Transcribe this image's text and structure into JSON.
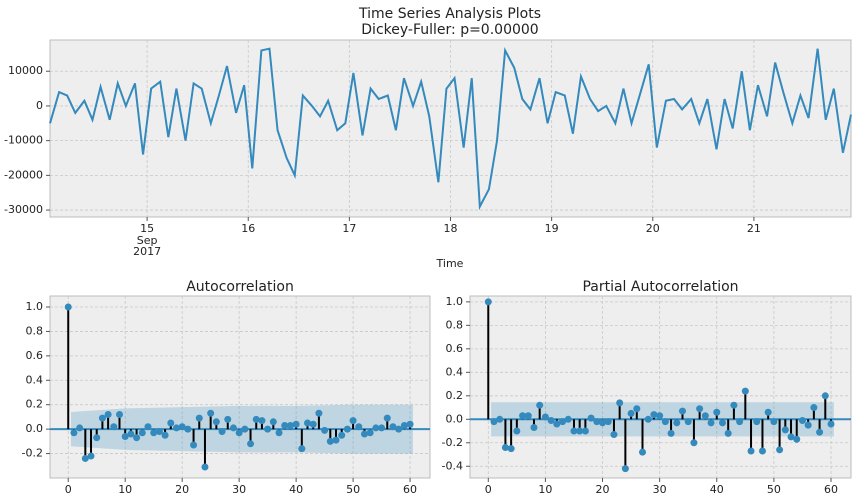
{
  "chart_data": [
    {
      "type": "line",
      "title": "Time Series Analysis Plots",
      "subtitle": "Dickey-Fuller: p=0.00000",
      "xlabel": "Time",
      "date_label": {
        "month": "Sep",
        "year": "2017"
      },
      "color": "#348abd",
      "grid": true,
      "xlim": [
        14.04,
        21.96
      ],
      "xticks": [
        15,
        16,
        17,
        18,
        19,
        20,
        21
      ],
      "ylim": [
        -32000,
        19000
      ],
      "yticks": [
        10000,
        0,
        -10000,
        -20000,
        -30000
      ],
      "x": [
        14.04,
        14.13,
        14.21,
        14.29,
        14.38,
        14.46,
        14.54,
        14.63,
        14.71,
        14.79,
        14.88,
        14.96,
        15.04,
        15.13,
        15.21,
        15.29,
        15.38,
        15.46,
        15.54,
        15.63,
        15.71,
        15.79,
        15.88,
        15.96,
        16.04,
        16.13,
        16.21,
        16.29,
        16.38,
        16.46,
        16.54,
        16.63,
        16.71,
        16.79,
        16.88,
        16.96,
        17.04,
        17.13,
        17.21,
        17.29,
        17.38,
        17.46,
        17.54,
        17.63,
        17.71,
        17.79,
        17.88,
        17.96,
        18.04,
        18.13,
        18.21,
        18.29,
        18.38,
        18.46,
        18.54,
        18.63,
        18.71,
        18.79,
        18.88,
        18.96,
        19.04,
        19.13,
        19.21,
        19.29,
        19.38,
        19.46,
        19.54,
        19.63,
        19.71,
        19.79,
        19.88,
        19.96,
        20.04,
        20.13,
        20.21,
        20.29,
        20.38,
        20.46,
        20.54,
        20.63,
        20.71,
        20.79,
        20.88,
        20.96,
        21.04,
        21.13,
        21.21,
        21.29,
        21.38,
        21.46,
        21.54,
        21.63,
        21.71,
        21.79,
        21.88,
        21.96
      ],
      "values": [
        -5000,
        4000,
        3000,
        -2000,
        1500,
        -4000,
        5500,
        -4000,
        6500,
        0,
        6500,
        -14000,
        5000,
        7000,
        -9000,
        5000,
        -10000,
        6500,
        5000,
        -5000,
        3000,
        11500,
        -2000,
        6000,
        -18000,
        16000,
        16500,
        -7000,
        -15000,
        -20000,
        3000,
        0,
        -3000,
        1500,
        -7000,
        -5000,
        9500,
        -8500,
        5000,
        2000,
        3000,
        -7000,
        8000,
        0,
        7000,
        -3000,
        -22000,
        5000,
        8000,
        -12000,
        8000,
        -29000,
        -24000,
        -10000,
        16000,
        11000,
        2000,
        -1000,
        8000,
        -5000,
        4000,
        3000,
        -8000,
        8500,
        2000,
        -1500,
        0,
        -5000,
        5000,
        -5000,
        4000,
        12000,
        -12000,
        1500,
        2000,
        -1000,
        2000,
        -5000,
        2000,
        -12500,
        2000,
        -6500,
        10000,
        -7000,
        6000,
        -3000,
        12500,
        4000,
        -5000,
        3000,
        -3500,
        16500,
        -4000,
        5000,
        -13500,
        -2500
      ]
    },
    {
      "type": "stem",
      "title": "Autocorrelation",
      "color": "#348abd",
      "grid": true,
      "xlim": [
        -3.2,
        63.5
      ],
      "xticks": [
        0,
        10,
        20,
        30,
        40,
        50,
        60
      ],
      "ylim": [
        -0.4,
        1.09
      ],
      "yticks": [
        {
          "value": -0.2,
          "label": "-0.2"
        },
        {
          "value": 0,
          "label": "0.0"
        },
        {
          "value": 0.2,
          "label": "0.2"
        },
        {
          "value": 0.4,
          "label": "0.4"
        },
        {
          "value": 0.6,
          "label": "0.6"
        },
        {
          "value": 0.8,
          "label": "0.8"
        },
        {
          "value": 1,
          "label": "1.0"
        }
      ],
      "confidence_band": {
        "x": [
          0.5,
          10,
          20,
          30,
          40,
          50,
          60.5
        ],
        "upper": [
          0.14,
          0.17,
          0.18,
          0.19,
          0.19,
          0.2,
          0.2
        ],
        "lower": [
          -0.14,
          -0.17,
          -0.18,
          -0.19,
          -0.19,
          -0.2,
          -0.2
        ]
      },
      "values": [
        1.0,
        -0.03,
        0.01,
        -0.24,
        -0.22,
        -0.07,
        0.09,
        0.12,
        0.02,
        0.12,
        -0.06,
        -0.04,
        -0.07,
        -0.03,
        0.02,
        -0.03,
        -0.02,
        -0.05,
        0.05,
        0.01,
        0.02,
        0.0,
        -0.13,
        0.09,
        -0.31,
        0.13,
        0.06,
        -0.02,
        0.08,
        0.01,
        -0.03,
        0.0,
        -0.12,
        0.08,
        0.07,
        0.0,
        0.06,
        -0.03,
        0.03,
        0.03,
        0.04,
        -0.16,
        0.05,
        0.04,
        0.13,
        -0.01,
        -0.1,
        -0.09,
        -0.05,
        0.0,
        0.07,
        0.02,
        -0.04,
        -0.03,
        0.01,
        0.01,
        0.09,
        0.02,
        0.0,
        0.03,
        0.04
      ]
    },
    {
      "type": "stem",
      "title": "Partial Autocorrelation",
      "color": "#348abd",
      "grid": true,
      "xlim": [
        -3.2,
        63.5
      ],
      "xticks": [
        0,
        10,
        20,
        30,
        40,
        50,
        60
      ],
      "ylim": [
        -0.5,
        1.05
      ],
      "yticks": [
        {
          "value": -0.4,
          "label": "-0.4"
        },
        {
          "value": -0.2,
          "label": "-0.2"
        },
        {
          "value": 0,
          "label": "0.0"
        },
        {
          "value": 0.2,
          "label": "0.2"
        },
        {
          "value": 0.4,
          "label": "0.4"
        },
        {
          "value": 0.6,
          "label": "0.6"
        },
        {
          "value": 0.8,
          "label": "0.8"
        },
        {
          "value": 1,
          "label": "1.0"
        }
      ],
      "confidence_band": {
        "x": [
          0.5,
          60.5
        ],
        "upper": [
          0.145,
          0.145
        ],
        "lower": [
          -0.145,
          -0.145
        ]
      },
      "values": [
        1.0,
        -0.02,
        0.0,
        -0.24,
        -0.25,
        -0.1,
        0.03,
        0.03,
        -0.07,
        0.12,
        0.02,
        -0.01,
        -0.04,
        -0.02,
        0.0,
        -0.1,
        -0.1,
        -0.1,
        0.01,
        -0.02,
        -0.03,
        -0.02,
        -0.13,
        0.14,
        -0.42,
        0.05,
        0.09,
        -0.28,
        0.0,
        0.04,
        0.03,
        -0.02,
        -0.12,
        -0.03,
        0.07,
        -0.02,
        -0.2,
        0.09,
        0.03,
        -0.03,
        0.06,
        -0.03,
        -0.12,
        0.12,
        -0.02,
        0.24,
        -0.27,
        -0.02,
        -0.27,
        0.06,
        -0.02,
        -0.26,
        -0.09,
        -0.15,
        -0.17,
        -0.01,
        -0.05,
        0.1,
        -0.11,
        0.2,
        -0.04
      ]
    }
  ]
}
